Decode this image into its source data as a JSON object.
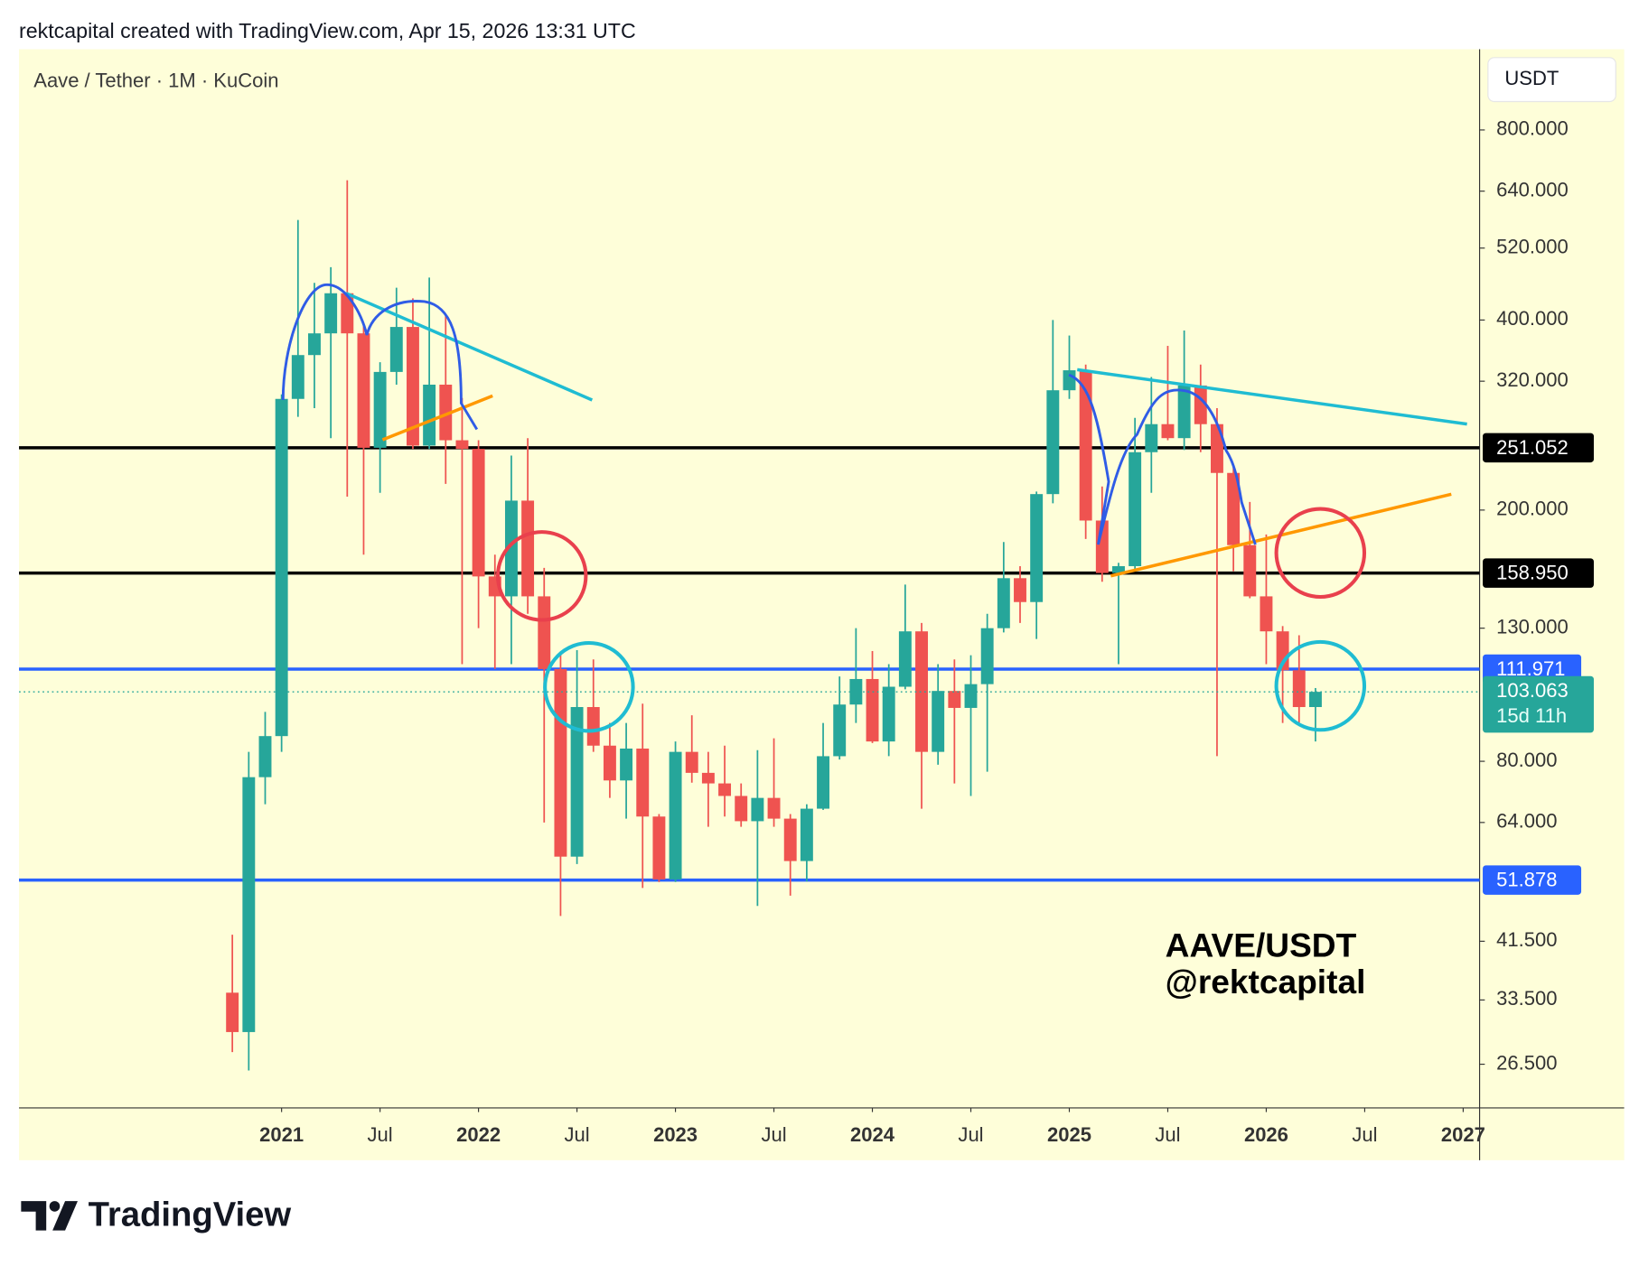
{
  "header": "rektcapital created with TradingView.com, Apr 15, 2026 13:31 UTC",
  "logo": "TradingView",
  "chart_data": {
    "type": "candlestick",
    "title": "Aave / Tether · 1M · KuCoin",
    "currency": "USDT",
    "annotations": [
      "AAVE/USDT",
      "@rektcapital"
    ],
    "countdown": "15d 11h",
    "log_scale": true,
    "up_color": "#26a69a",
    "down_color": "#ef5350",
    "x": [
      "2020-10",
      "2020-11",
      "2020-12",
      "2021-01",
      "2021-02",
      "2021-03",
      "2021-04",
      "2021-05",
      "2021-06",
      "2021-07",
      "2021-08",
      "2021-09",
      "2021-10",
      "2021-11",
      "2021-12",
      "2022-01",
      "2022-02",
      "2022-03",
      "2022-04",
      "2022-05",
      "2022-06",
      "2022-07",
      "2022-08",
      "2022-09",
      "2022-10",
      "2022-11",
      "2022-12",
      "2023-01",
      "2023-02",
      "2023-03",
      "2023-04",
      "2023-05",
      "2023-06",
      "2023-07",
      "2023-08",
      "2023-09",
      "2023-10",
      "2023-11",
      "2023-12",
      "2024-01",
      "2024-02",
      "2024-03",
      "2024-04",
      "2024-05",
      "2024-06",
      "2024-07",
      "2024-08",
      "2024-09",
      "2024-10",
      "2024-11",
      "2024-12",
      "2025-01",
      "2025-02",
      "2025-03",
      "2025-04",
      "2025-05",
      "2025-06",
      "2025-07",
      "2025-08",
      "2025-09",
      "2025-10",
      "2025-11",
      "2025-12",
      "2026-01",
      "2026-02",
      "2026-03",
      "2026-04"
    ],
    "open": [
      34.4,
      29.8,
      75.5,
      87.7,
      300,
      352,
      381,
      441,
      381,
      251,
      331,
      390,
      253,
      316,
      258,
      250,
      157,
      146,
      207,
      146,
      112,
      56.5,
      97.5,
      84.7,
      74.6,
      83.8,
      65.4,
      52,
      82.8,
      76.7,
      73.8,
      70.5,
      64.3,
      70,
      64.9,
      55.6,
      67.3,
      81.5,
      98.4,
      108,
      86,
      105,
      128.5,
      82.8,
      103.4,
      97.2,
      106,
      130,
      156,
      143,
      212,
      309.6,
      333,
      192.5,
      159,
      163,
      247,
      273.6,
      260,
      315,
      273.6,
      229,
      176,
      146,
      128.5,
      111.5,
      97.5
    ],
    "high": [
      42.5,
      82.8,
      95.8,
      305,
      576,
      458,
      485,
      666,
      395,
      343,
      450,
      433,
      467,
      409,
      301,
      258,
      170,
      244,
      260,
      162,
      118,
      120,
      116,
      92,
      92,
      98.7,
      66,
      86,
      94.6,
      82.8,
      84.7,
      73.8,
      83.3,
      87,
      66,
      68.4,
      92,
      109,
      130,
      119.6,
      114,
      152.4,
      132.5,
      114,
      116,
      117.8,
      137,
      178,
      163,
      214,
      400,
      378,
      340,
      218,
      165,
      280,
      325,
      364,
      385,
      340,
      290,
      235,
      206,
      183,
      131,
      126.7,
      104.5
    ],
    "low": [
      27.7,
      25.9,
      68.4,
      82.8,
      281,
      290,
      260,
      210,
      170,
      213,
      316,
      250,
      250,
      220,
      114,
      130,
      112,
      114,
      137,
      64,
      45.5,
      55,
      82.8,
      70,
      64.9,
      50.4,
      51.5,
      51.5,
      74,
      63,
      65.4,
      63,
      47.2,
      63,
      49,
      51.6,
      67,
      80.5,
      92,
      85.5,
      81.5,
      104,
      67.3,
      79,
      73.8,
      70.5,
      77,
      128,
      132.5,
      125,
      205,
      300,
      180,
      154,
      114,
      160,
      213,
      258,
      249,
      247,
      81.5,
      160,
      145,
      114,
      92,
      92,
      86
    ],
    "close": [
      29.8,
      75.5,
      87.7,
      300,
      352,
      381,
      441,
      381,
      251,
      331,
      390,
      253,
      316,
      258,
      250,
      157,
      146,
      207,
      146,
      112,
      56.5,
      97.5,
      84.7,
      74.6,
      83.8,
      65.4,
      52,
      82.8,
      76.7,
      73.8,
      70.5,
      64.3,
      70,
      64.9,
      55.6,
      67.3,
      81.5,
      98.4,
      108,
      86,
      105,
      128.5,
      82.8,
      103.4,
      97.2,
      106,
      130,
      156,
      143,
      212,
      309.6,
      333,
      192.5,
      159,
      163,
      247,
      273.6,
      260,
      315,
      273.6,
      229,
      176,
      146,
      128.5,
      111.5,
      97.5,
      103.063
    ],
    "levels": [
      {
        "value": 251.052,
        "color": "#000000",
        "label_color": "#000000"
      },
      {
        "value": 158.95,
        "label": "158.950",
        "color": "#000000",
        "label_color": "#000000"
      },
      {
        "value": 111.971,
        "color": "#2962ff",
        "label_color": "#2962ff"
      },
      {
        "value": 51.878,
        "color": "#2962ff",
        "label_color": "#2962ff"
      }
    ],
    "ylim": [
      22.6,
      1074
    ],
    "yticks": [
      {
        "value": 800,
        "label": "800.000"
      },
      {
        "value": 640,
        "label": "640.000"
      },
      {
        "value": 520,
        "label": "520.000"
      },
      {
        "value": 400,
        "label": "400.000"
      },
      {
        "value": 320,
        "label": "320.000"
      },
      {
        "value": 200,
        "label": "200.000"
      },
      {
        "value": 130,
        "label": "130.000"
      },
      {
        "value": 80,
        "label": "80.000"
      },
      {
        "value": 64,
        "label": "64.000"
      },
      {
        "value": 41.5,
        "label": "41.500"
      },
      {
        "value": 33.5,
        "label": "33.500"
      },
      {
        "value": 26.5,
        "label": "26.500"
      }
    ],
    "xlim": [
      "2019-09",
      "2027-02"
    ],
    "xticks": [
      {
        "value": "2021-01",
        "label": "2021"
      },
      {
        "value": "2021-07",
        "label": "Jul"
      },
      {
        "value": "2022-01",
        "label": "2022"
      },
      {
        "value": "2022-07",
        "label": "Jul"
      },
      {
        "value": "2023-01",
        "label": "2023"
      },
      {
        "value": "2023-07",
        "label": "Jul"
      },
      {
        "value": "2024-01",
        "label": "2024"
      },
      {
        "value": "2024-07",
        "label": "Jul"
      },
      {
        "value": "2025-01",
        "label": "2025"
      },
      {
        "value": "2025-07",
        "label": "Jul"
      },
      {
        "value": "2026-01",
        "label": "2026"
      },
      {
        "value": "2026-07",
        "label": "Jul"
      },
      {
        "value": "2027-01",
        "label": "2027"
      }
    ]
  }
}
